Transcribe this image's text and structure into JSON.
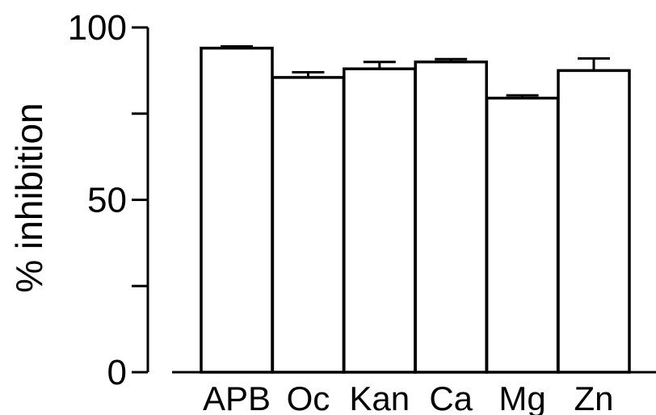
{
  "chart_data": {
    "type": "bar",
    "title": "",
    "xlabel": "",
    "ylabel": "% inhibition",
    "categories": [
      "APB",
      "Oc",
      "Kan",
      "Ca",
      "Mg",
      "Zn"
    ],
    "series": [
      {
        "values": [
          94,
          85.5,
          88,
          90,
          79.5,
          87.5
        ],
        "errors": [
          0.5,
          1.5,
          2,
          0.8,
          0.8,
          3.5
        ]
      }
    ],
    "ylim": [
      0,
      100
    ],
    "yticks": [
      0,
      25,
      50,
      75,
      100
    ],
    "ytick_labels": [
      "0",
      "",
      "50",
      "",
      "100"
    ],
    "grid": false,
    "legend": "none",
    "colors": {
      "bar_fill": "#ffffff",
      "bar_stroke": "#000000"
    }
  }
}
